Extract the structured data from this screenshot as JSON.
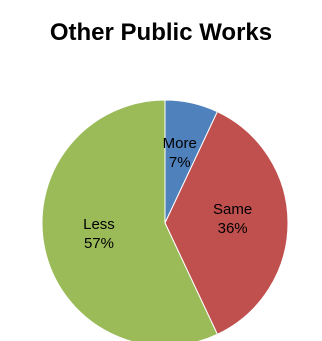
{
  "chart_data": {
    "type": "pie",
    "title": "Other Public Works",
    "slices": [
      {
        "label": "More",
        "value": 7,
        "value_label": "7%",
        "color": "#4F81BD",
        "text_color": "#000000"
      },
      {
        "label": "Same",
        "value": 36,
        "value_label": "36%",
        "color": "#C0504D",
        "text_color": "#000000"
      },
      {
        "label": "Less",
        "value": 57,
        "value_label": "57%",
        "color": "#9BBB59",
        "text_color": "#000000"
      }
    ]
  }
}
